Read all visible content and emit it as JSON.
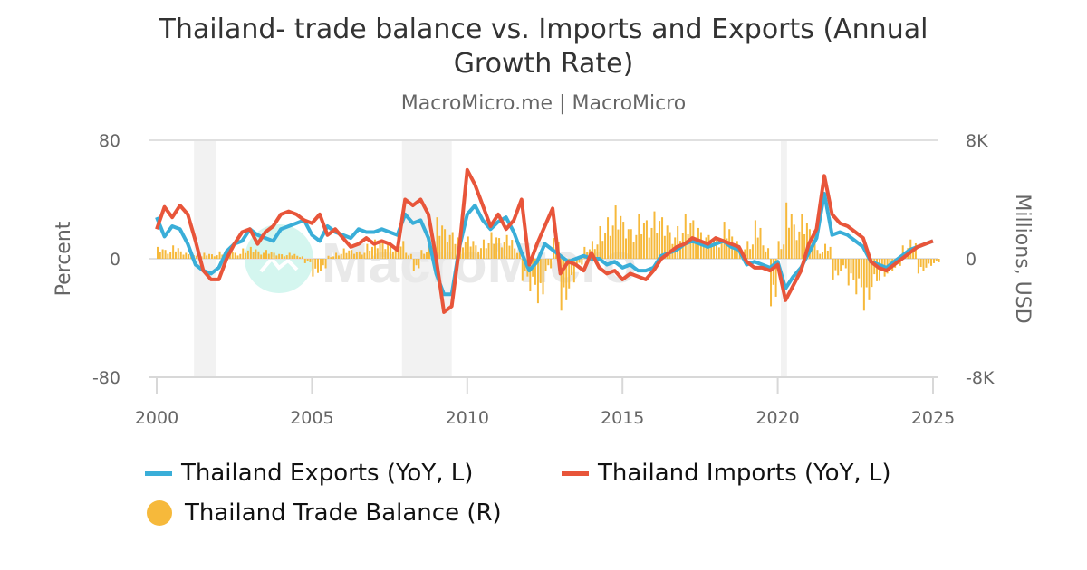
{
  "title": "Thailand- trade balance vs. Imports and Exports (Annual Growth Rate)",
  "title_lines": [
    "Thailand- trade balance vs. Imports and Exports (Annual",
    "Growth Rate)"
  ],
  "subtitle": "MacroMicro.me | MacroMicro",
  "watermark": "MacroMicro",
  "colors": {
    "exports": "#3aaed8",
    "imports": "#e8553a",
    "trade_balance": "#f6b93b",
    "recession": "#f2f2f2",
    "gridline": "#e0e0e0",
    "watermark_logo": "#d4f6ef"
  },
  "legend": [
    {
      "label": "Thailand Exports (YoY, L)",
      "color": "#3aaed8",
      "symbol": "line"
    },
    {
      "label": "Thailand Imports (YoY, L)",
      "color": "#e8553a",
      "symbol": "line"
    },
    {
      "label": "Thailand Trade Balance (R)",
      "color": "#f6b93b",
      "symbol": "circle"
    }
  ],
  "chart_data": {
    "type": "line",
    "title": "Thailand- trade balance vs. Imports and Exports (Annual Growth Rate)",
    "subtitle": "MacroMicro.me | MacroMicro",
    "xlabel": "",
    "ylabel": "Percent",
    "ylabel_right": "Millions, USD",
    "xlim": [
      2000,
      2025
    ],
    "ylim": [
      -80,
      80
    ],
    "ylim_right": [
      -8000,
      8000
    ],
    "x_ticks": [
      "2000",
      "2005",
      "2010",
      "2015",
      "2020",
      "2025"
    ],
    "y_ticks_left": [
      "80",
      "0",
      "-80"
    ],
    "y_ticks_right": [
      "8K",
      "0",
      "-8K"
    ],
    "grid": true,
    "legend_position": "bottom",
    "recession_bands": [
      [
        2001.2,
        2001.9
      ],
      [
        2007.9,
        2009.5
      ],
      [
        2020.1,
        2020.3
      ]
    ],
    "x": [
      2000.0,
      2000.25,
      2000.5,
      2000.75,
      2001.0,
      2001.25,
      2001.5,
      2001.75,
      2002.0,
      2002.25,
      2002.5,
      2002.75,
      2003.0,
      2003.25,
      2003.5,
      2003.75,
      2004.0,
      2004.25,
      2004.5,
      2004.75,
      2005.0,
      2005.25,
      2005.5,
      2005.75,
      2006.0,
      2006.25,
      2006.5,
      2006.75,
      2007.0,
      2007.25,
      2007.5,
      2007.75,
      2008.0,
      2008.25,
      2008.5,
      2008.75,
      2009.0,
      2009.25,
      2009.5,
      2009.75,
      2010.0,
      2010.25,
      2010.5,
      2010.75,
      2011.0,
      2011.25,
      2011.5,
      2011.75,
      2012.0,
      2012.25,
      2012.5,
      2012.75,
      2013.0,
      2013.25,
      2013.5,
      2013.75,
      2014.0,
      2014.25,
      2014.5,
      2014.75,
      2015.0,
      2015.25,
      2015.5,
      2015.75,
      2016.0,
      2016.25,
      2016.5,
      2016.75,
      2017.0,
      2017.25,
      2017.5,
      2017.75,
      2018.0,
      2018.25,
      2018.5,
      2018.75,
      2019.0,
      2019.25,
      2019.5,
      2019.75,
      2020.0,
      2020.25,
      2020.5,
      2020.75,
      2021.0,
      2021.25,
      2021.5,
      2021.75,
      2022.0,
      2022.25,
      2022.5,
      2022.75,
      2023.0,
      2023.25,
      2023.5,
      2023.75,
      2024.0,
      2024.25,
      2024.5,
      2024.75,
      2025.0
    ],
    "series": [
      {
        "name": "Thailand Exports (YoY, L)",
        "axis": "left",
        "values": [
          28,
          15,
          22,
          20,
          10,
          -4,
          -8,
          -10,
          -6,
          5,
          10,
          12,
          20,
          16,
          14,
          12,
          20,
          22,
          24,
          26,
          16,
          12,
          22,
          18,
          16,
          14,
          20,
          18,
          18,
          20,
          18,
          16,
          30,
          24,
          26,
          14,
          -10,
          -24,
          -24,
          8,
          30,
          36,
          26,
          20,
          25,
          28,
          18,
          4,
          -8,
          -2,
          10,
          6,
          2,
          -2,
          0,
          2,
          0,
          0,
          -4,
          -2,
          -6,
          -4,
          -8,
          -8,
          -6,
          2,
          4,
          6,
          10,
          12,
          10,
          8,
          10,
          12,
          8,
          6,
          -4,
          -2,
          -4,
          -6,
          -2,
          -20,
          -12,
          -6,
          4,
          14,
          44,
          16,
          18,
          16,
          12,
          8,
          -2,
          -4,
          -6,
          -2,
          2,
          6,
          8,
          10,
          12
        ]
      },
      {
        "name": "Thailand Imports (YoY, L)",
        "axis": "left",
        "values": [
          20,
          35,
          28,
          36,
          30,
          12,
          -8,
          -14,
          -14,
          0,
          10,
          18,
          20,
          10,
          18,
          22,
          30,
          32,
          30,
          26,
          24,
          30,
          16,
          20,
          14,
          8,
          10,
          14,
          10,
          12,
          10,
          6,
          40,
          36,
          40,
          30,
          0,
          -36,
          -32,
          8,
          60,
          50,
          36,
          22,
          30,
          20,
          26,
          40,
          -4,
          10,
          22,
          34,
          -10,
          -2,
          -4,
          -8,
          4,
          -6,
          -10,
          -8,
          -14,
          -10,
          -12,
          -14,
          -8,
          0,
          4,
          8,
          10,
          14,
          12,
          10,
          14,
          12,
          10,
          8,
          -2,
          -6,
          -6,
          -8,
          -4,
          -28,
          -18,
          -8,
          10,
          20,
          56,
          30,
          24,
          22,
          18,
          14,
          -2,
          -6,
          -8,
          -4,
          0,
          4,
          8,
          10,
          12
        ]
      },
      {
        "name": "Thailand Trade Balance (R)",
        "axis": "right",
        "type": "bar",
        "values": [
          800,
          600,
          900,
          500,
          300,
          200,
          400,
          300,
          500,
          600,
          400,
          700,
          800,
          500,
          600,
          400,
          300,
          400,
          200,
          -300,
          -1200,
          -800,
          200,
          400,
          700,
          600,
          500,
          1000,
          1300,
          1200,
          900,
          1500,
          400,
          -800,
          600,
          1500,
          2800,
          2000,
          1800,
          1400,
          1500,
          900,
          1300,
          1800,
          1400,
          1600,
          700,
          -1500,
          -2200,
          -3000,
          -800,
          1400,
          -3500,
          -2000,
          -500,
          800,
          1200,
          2200,
          2800,
          3600,
          2500,
          2000,
          3000,
          2600,
          3200,
          2800,
          1800,
          2200,
          3000,
          2600,
          1800,
          1600,
          1400,
          2500,
          1500,
          800,
          1200,
          2600,
          900,
          -3200,
          1200,
          3800,
          2300,
          3000,
          2000,
          600,
          1000,
          -1400,
          -800,
          -1800,
          -2400,
          -3500,
          -1900,
          -1500,
          -1000,
          -600,
          900,
          1300,
          -1000,
          -600,
          -300
        ]
      }
    ]
  }
}
